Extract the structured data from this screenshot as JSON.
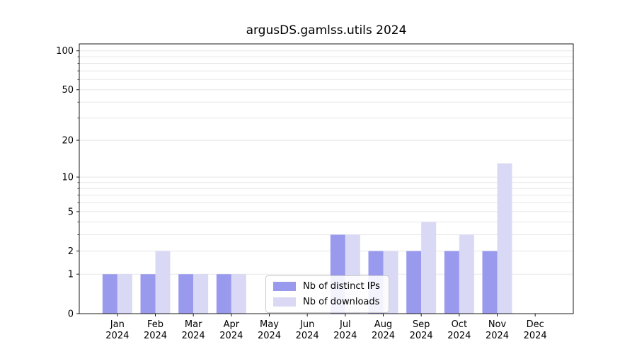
{
  "chart_data": {
    "type": "bar",
    "title": "argusDS.gamlss.utils 2024",
    "categories": [
      "Jan",
      "Feb",
      "Mar",
      "Apr",
      "May",
      "Jun",
      "Jul",
      "Aug",
      "Sep",
      "Oct",
      "Nov",
      "Dec"
    ],
    "category_year": "2024",
    "series": [
      {
        "name": "Nb of distinct IPs",
        "color": "#9999ee",
        "values": [
          1,
          1,
          1,
          1,
          0,
          0,
          3,
          2,
          2,
          2,
          2,
          0
        ]
      },
      {
        "name": "Nb of downloads",
        "color": "#d9d9f6",
        "values": [
          1,
          2,
          1,
          1,
          0,
          0,
          3,
          2,
          4,
          3,
          13,
          0
        ]
      }
    ],
    "yscale": "log1p",
    "yticks": [
      0,
      1,
      2,
      5,
      10,
      20,
      50,
      100
    ],
    "grid_values": [
      1,
      2,
      3,
      4,
      5,
      6,
      7,
      8,
      9,
      10,
      20,
      30,
      40,
      50,
      60,
      70,
      80,
      90,
      100
    ],
    "ylim_top_value": 113,
    "grid": true,
    "grid_color": "#e7e7e7",
    "axis_color": "#1a1a1a",
    "legend_position": "bottom-center"
  }
}
